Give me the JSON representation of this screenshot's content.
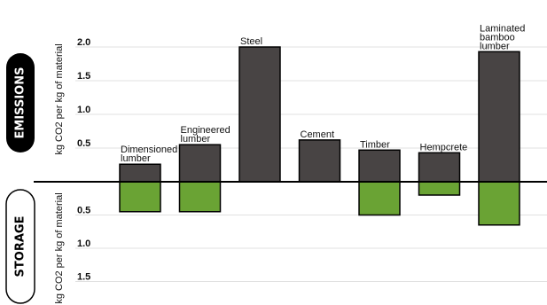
{
  "chart_data": {
    "type": "bar",
    "categories": [
      "Dimensioned lumber",
      "Engineered lumber",
      "Steel",
      "Cement",
      "Timber",
      "Hempcrete",
      "Laminated bamboo lumber"
    ],
    "category_label_lines": [
      [
        "Dimensioned",
        "lumber"
      ],
      [
        "Engineered",
        "lumber"
      ],
      [
        "Steel"
      ],
      [
        "Cement"
      ],
      [
        "Timber"
      ],
      [
        "Hempcrete"
      ],
      [
        "Laminated",
        "bamboo",
        "lumber"
      ]
    ],
    "series": [
      {
        "name": "EMISSIONS",
        "values": [
          0.26,
          0.55,
          2.0,
          0.62,
          0.47,
          0.43,
          1.93
        ]
      },
      {
        "name": "STORAGE",
        "values": [
          0.45,
          0.45,
          0.0,
          0.0,
          0.5,
          0.2,
          0.65
        ]
      }
    ],
    "emissions_axis": {
      "label": "kg CO2 per kg of material",
      "ticks": [
        "0.5",
        "1.0",
        "1.5",
        "2.0"
      ],
      "tick_values": [
        0.5,
        1.0,
        1.5,
        2.0
      ],
      "ylim": [
        0,
        2.0
      ]
    },
    "storage_axis": {
      "label": "kg CO2 per kg of material",
      "ticks": [
        "0.5",
        "1.0",
        "1.5"
      ],
      "tick_values": [
        0.5,
        1.0,
        1.5
      ],
      "ylim": [
        0,
        1.5
      ]
    },
    "emissions_color": "#484444",
    "storage_color": "#6aa334",
    "grid": true
  },
  "labels": {
    "emissions": "EMISSIONS",
    "storage": "STORAGE"
  }
}
